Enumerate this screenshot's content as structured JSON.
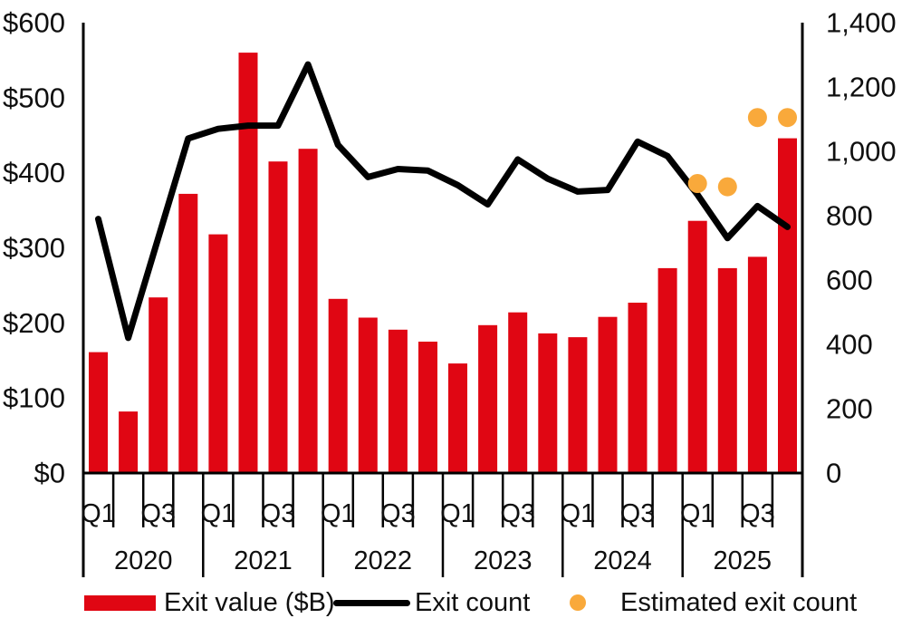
{
  "chart_data": {
    "type": "bar+line+scatter",
    "title": "",
    "categories": [
      "2020 Q1",
      "2020 Q2",
      "2020 Q3",
      "2020 Q4",
      "2021 Q1",
      "2021 Q2",
      "2021 Q3",
      "2021 Q4",
      "2022 Q1",
      "2022 Q2",
      "2022 Q3",
      "2022 Q4",
      "2023 Q1",
      "2023 Q2",
      "2023 Q3",
      "2023 Q4",
      "2024 Q1",
      "2024 Q2",
      "2024 Q3",
      "2024 Q4",
      "2025 Q1",
      "2025 Q2",
      "2025 Q3",
      "2025 Q4"
    ],
    "x_axis": {
      "years": [
        "2020",
        "2021",
        "2022",
        "2023",
        "2024",
        "2025"
      ],
      "quarter_labels": [
        "Q1",
        "Q3"
      ],
      "quarters_per_year": 4
    },
    "left_axis": {
      "ticks": [
        "$0",
        "$100",
        "$200",
        "$300",
        "$400",
        "$500",
        "$600"
      ],
      "min": 0,
      "max": 600
    },
    "right_axis": {
      "ticks": [
        "0",
        "200",
        "400",
        "600",
        "800",
        "1,000",
        "1,200",
        "1,400"
      ],
      "min": 0,
      "max": 1400
    },
    "grid": "off",
    "legend_position": "bottom",
    "series": [
      {
        "name": "Exit value ($B)",
        "type": "bar",
        "axis": "left",
        "color": "#E00613",
        "values": [
          161,
          82,
          234,
          372,
          318,
          560,
          415,
          432,
          232,
          207,
          191,
          175,
          146,
          197,
          214,
          186,
          181,
          208,
          227,
          273,
          336,
          273,
          288,
          446
        ]
      },
      {
        "name": "Exit count",
        "type": "line",
        "axis": "right",
        "color": "#000000",
        "values": [
          790,
          420,
          730,
          1040,
          1070,
          1080,
          1080,
          1270,
          1020,
          920,
          945,
          940,
          895,
          835,
          975,
          915,
          875,
          880,
          1030,
          985,
          865,
          730,
          830,
          765
        ]
      },
      {
        "name": "Estimated exit count",
        "type": "scatter",
        "axis": "right",
        "color": "#F9A93B",
        "categories": [
          "2025 Q1",
          "2025 Q2",
          "2025 Q3",
          "2025 Q4"
        ],
        "values": [
          900,
          890,
          1105,
          1105
        ]
      }
    ]
  },
  "legend": {
    "items": [
      {
        "label": "Exit value ($B)",
        "swatch": "bar",
        "color": "#E00613"
      },
      {
        "label": "Exit count",
        "swatch": "line",
        "color": "#000000"
      },
      {
        "label": "Estimated exit count",
        "swatch": "dot",
        "color": "#F9A93B"
      }
    ]
  }
}
